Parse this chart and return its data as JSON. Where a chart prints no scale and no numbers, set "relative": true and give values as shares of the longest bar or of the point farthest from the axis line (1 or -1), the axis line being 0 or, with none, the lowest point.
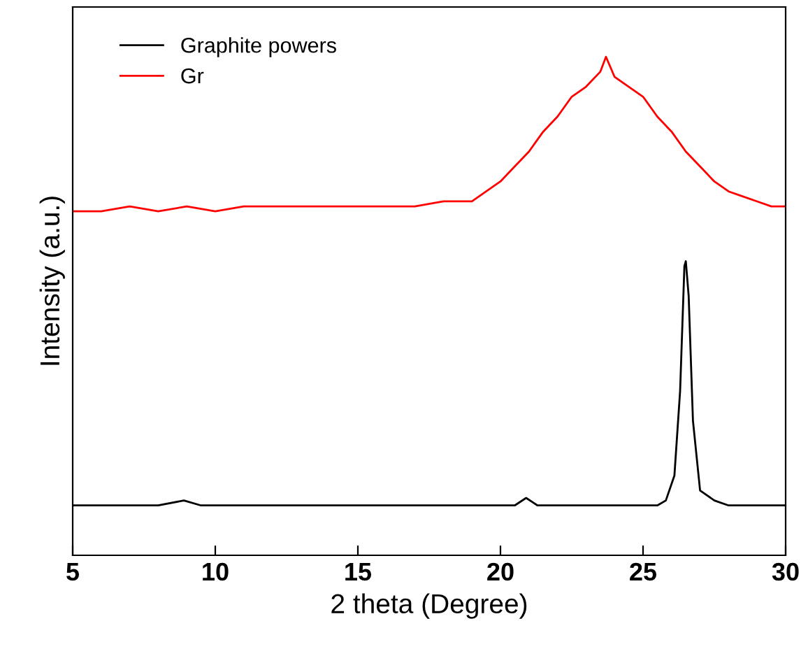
{
  "chart_data": {
    "type": "line",
    "relative": true,
    "xlabel": "2 theta (Degree)",
    "ylabel": "Intensity (a.u.)",
    "xlim": [
      5,
      30
    ],
    "xticks": [
      5,
      10,
      15,
      20,
      25,
      30
    ],
    "legend": "top left",
    "grid": false,
    "series": [
      {
        "name": "Graphite powers",
        "color": "#000000",
        "x": [
          5,
          6,
          7,
          8,
          8.9,
          9.5,
          11,
          12.5,
          14,
          16,
          17.8,
          19,
          20.5,
          20.9,
          21.3,
          22.5,
          24,
          25,
          25.5,
          25.8,
          26.1,
          26.3,
          26.45,
          26.5,
          26.6,
          26.75,
          27,
          27.5,
          28,
          29,
          30
        ],
        "values": [
          0.1,
          0.1,
          0.1,
          0.1,
          0.11,
          0.1,
          0.1,
          0.1,
          0.1,
          0.1,
          0.1,
          0.1,
          0.1,
          0.115,
          0.1,
          0.1,
          0.1,
          0.1,
          0.1,
          0.11,
          0.16,
          0.33,
          0.58,
          0.59,
          0.52,
          0.27,
          0.13,
          0.11,
          0.1,
          0.1,
          0.1
        ]
      },
      {
        "name": "Gr",
        "color": "#ff0000",
        "x": [
          5,
          6,
          7,
          8,
          9,
          10,
          11,
          12,
          13,
          14,
          15,
          16,
          17,
          18,
          19,
          19.5,
          20,
          20.5,
          21,
          21.5,
          22,
          22.5,
          23,
          23.5,
          23.7,
          24,
          24.5,
          25,
          25.5,
          26,
          26.5,
          27,
          27.5,
          28,
          28.5,
          29,
          29.5,
          30
        ],
        "values": [
          0.69,
          0.69,
          0.7,
          0.69,
          0.7,
          0.69,
          0.7,
          0.7,
          0.7,
          0.7,
          0.7,
          0.7,
          0.7,
          0.71,
          0.71,
          0.73,
          0.75,
          0.78,
          0.81,
          0.85,
          0.88,
          0.92,
          0.94,
          0.97,
          1.0,
          0.96,
          0.94,
          0.92,
          0.88,
          0.85,
          0.81,
          0.78,
          0.75,
          0.73,
          0.72,
          0.71,
          0.7,
          0.7
        ]
      }
    ]
  }
}
